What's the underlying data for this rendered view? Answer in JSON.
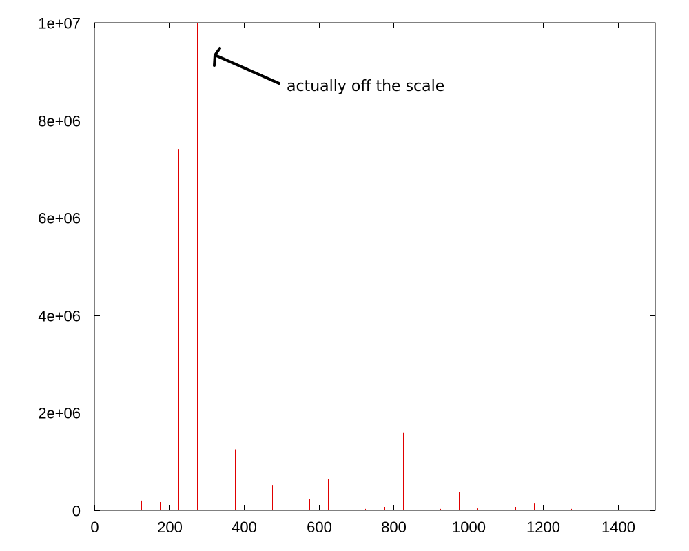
{
  "chart_data": {
    "type": "bar",
    "title": "",
    "xlabel": "",
    "ylabel": "",
    "xlim": [
      0,
      1500
    ],
    "ylim": [
      0,
      10000000
    ],
    "grid": false,
    "x_ticks": [
      0,
      200,
      400,
      600,
      800,
      1000,
      1200,
      1400
    ],
    "x_tick_labels": [
      "0",
      "200",
      "400",
      "600",
      "800",
      "1000",
      "1200",
      "1400"
    ],
    "y_ticks": [
      0,
      2000000,
      4000000,
      6000000,
      8000000,
      10000000
    ],
    "y_tick_labels": [
      "0",
      "2e+06",
      "4e+06",
      "6e+06",
      "8e+06",
      "1e+07"
    ],
    "series": [
      {
        "name": "",
        "color": "#e00000",
        "x": [
          125,
          175,
          225,
          275,
          325,
          375,
          425,
          475,
          525,
          575,
          625,
          675,
          725,
          775,
          825,
          875,
          925,
          975,
          1025,
          1075,
          1125,
          1175,
          1225,
          1275,
          1325,
          1375,
          1425,
          1475
        ],
        "values": [
          200000,
          170000,
          7400000,
          10000000,
          340000,
          1250000,
          3960000,
          520000,
          430000,
          230000,
          640000,
          330000,
          30000,
          70000,
          1600000,
          20000,
          30000,
          370000,
          40000,
          15000,
          70000,
          140000,
          20000,
          30000,
          100000,
          15000,
          10000,
          15000
        ]
      }
    ],
    "annotations": [
      {
        "text": "actually off the scale",
        "points_to": {
          "x": 275,
          "y": 10000000
        }
      }
    ]
  }
}
